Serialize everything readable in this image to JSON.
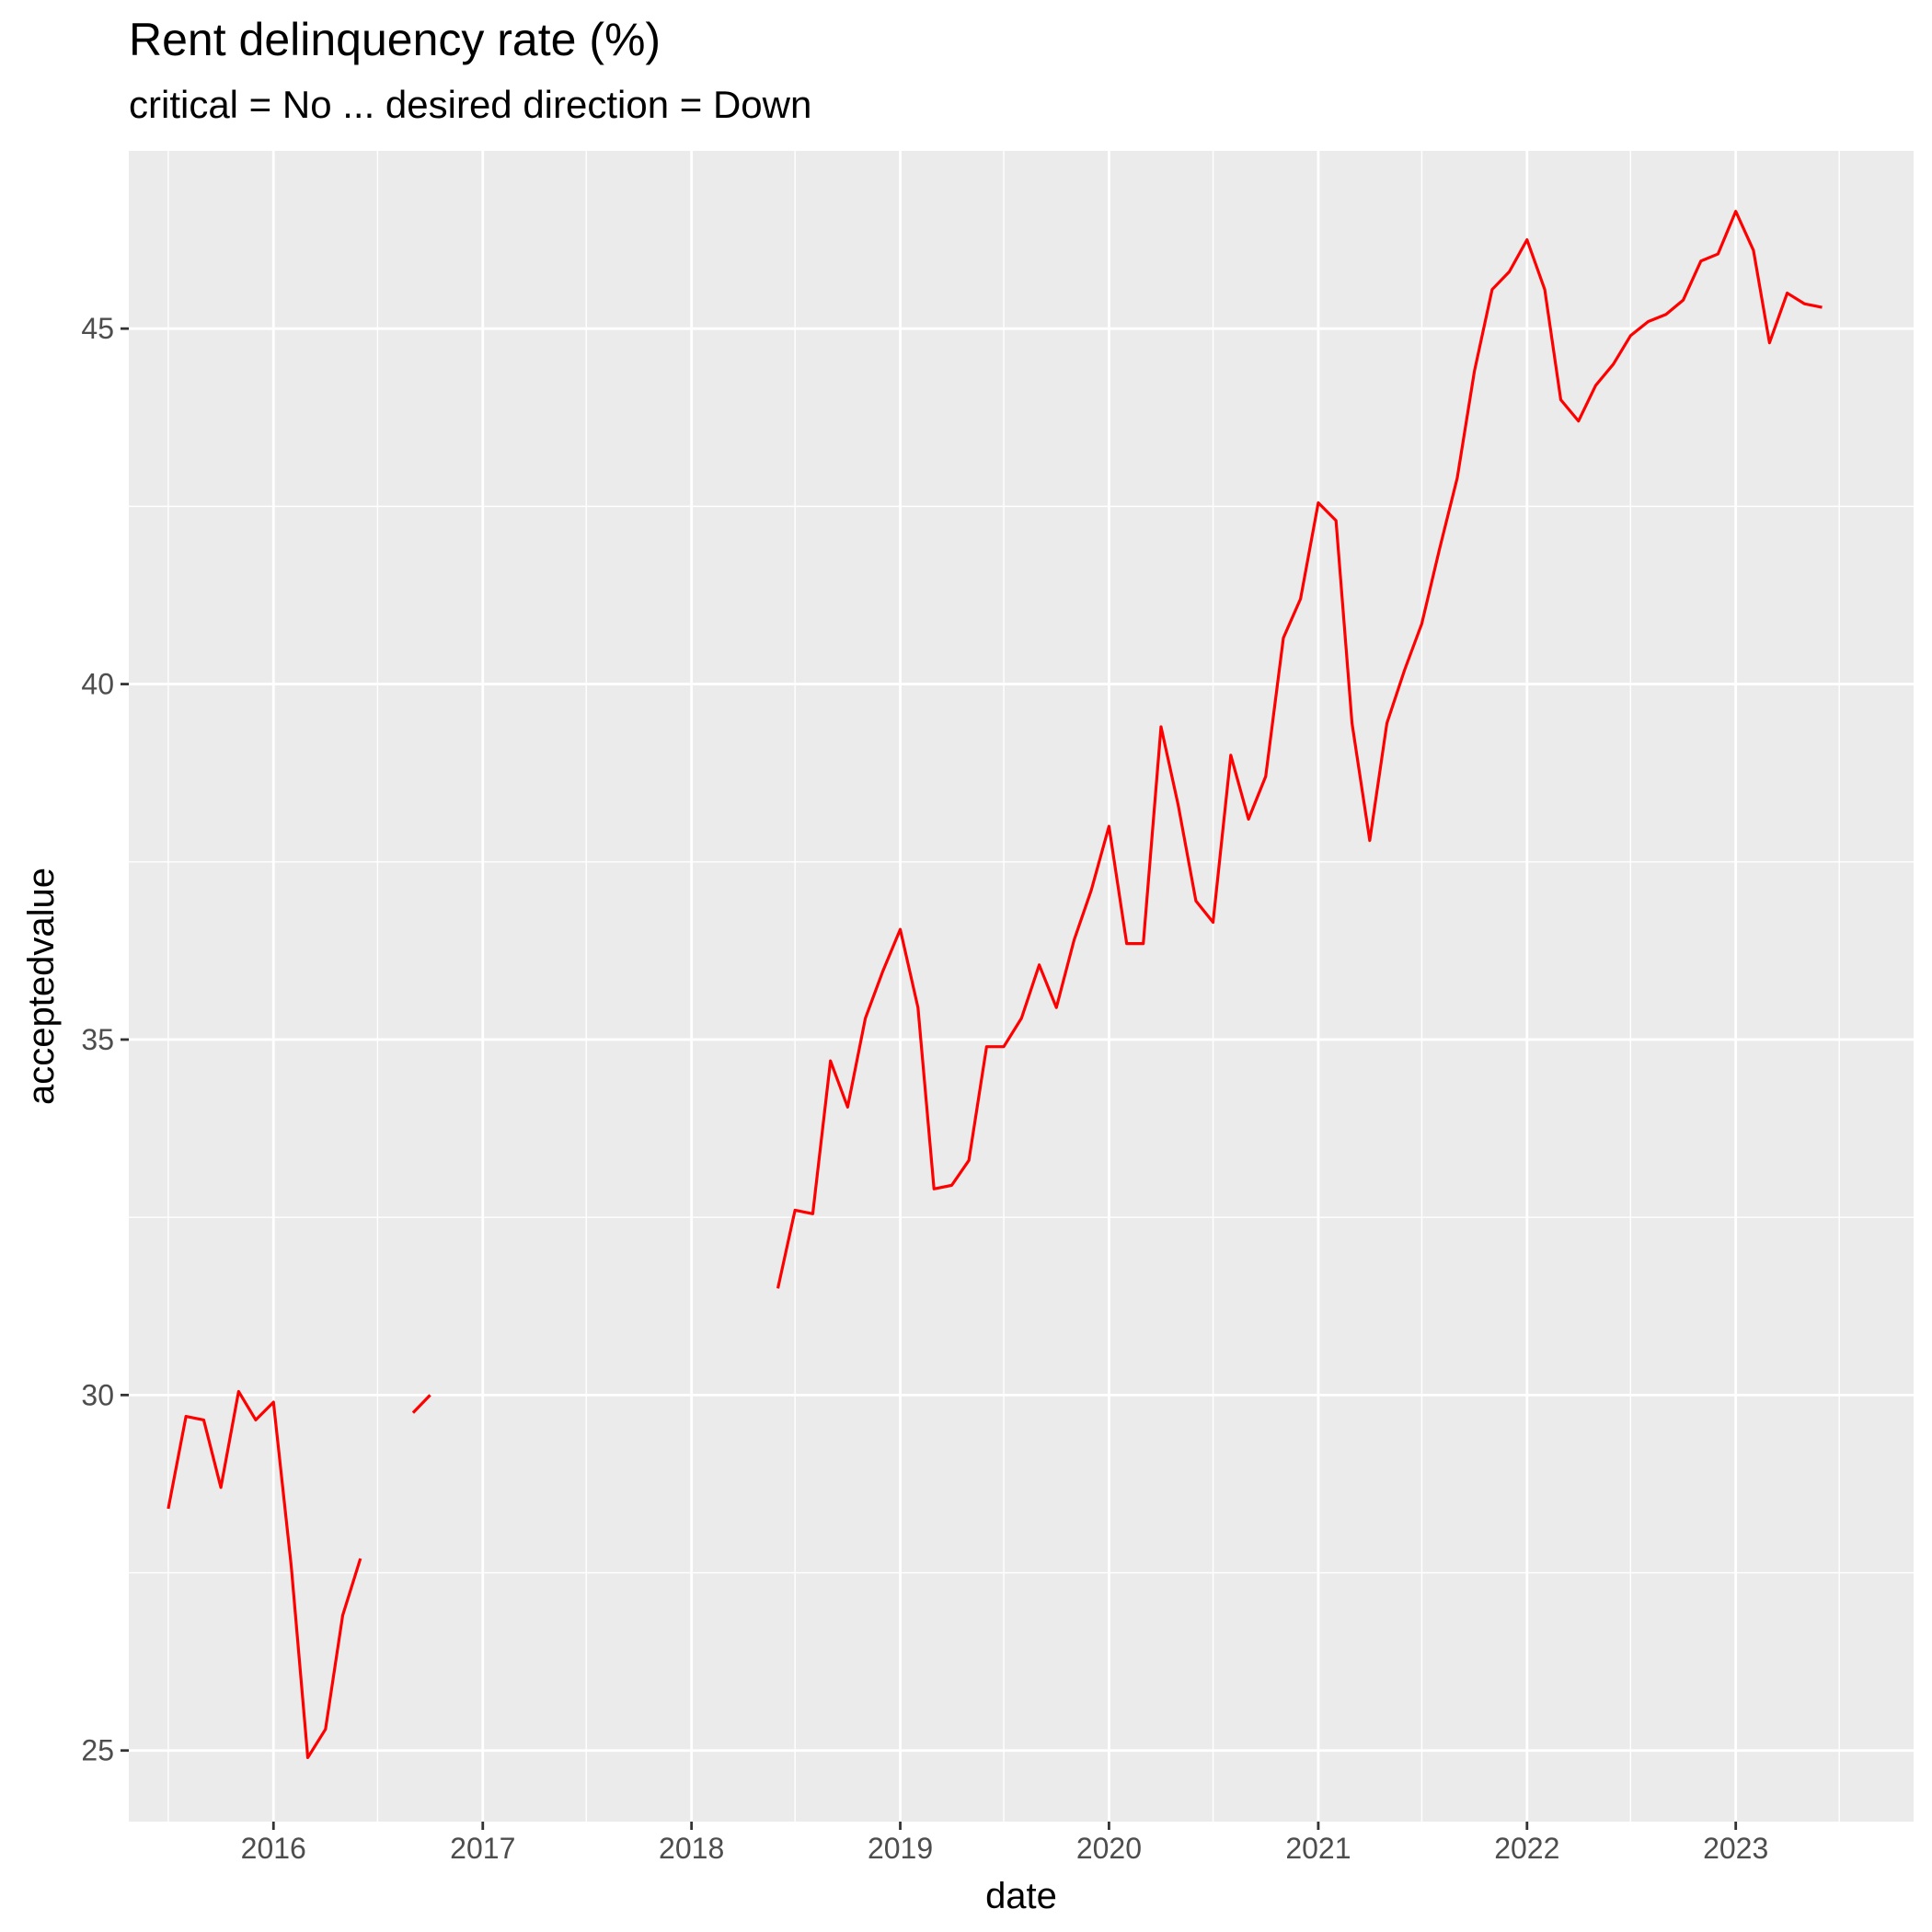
{
  "chart_data": {
    "type": "line",
    "title": "Rent delinquency rate (%)",
    "subtitle": "critical = No ... desired direction = Down",
    "xlabel": "date",
    "ylabel": "acceptedvalue",
    "x_ticks": [
      "2016",
      "2017",
      "2018",
      "2019",
      "2020",
      "2021",
      "2022",
      "2023"
    ],
    "y_ticks": [
      "25",
      "30",
      "35",
      "40",
      "45"
    ],
    "xlim": [
      "2015-04-23",
      "2023-11-08"
    ],
    "ylim": [
      24.0,
      47.5
    ],
    "grid": true,
    "colors": {
      "line": "#ff0000",
      "panel": "#ebebeb",
      "grid": "#ffffff",
      "tick": "#333333"
    },
    "series": [
      {
        "segments": [
          [
            [
              "2015-07-01",
              28.4
            ],
            [
              "2015-08-01",
              29.7
            ],
            [
              "2015-09-01",
              29.65
            ],
            [
              "2015-10-01",
              28.7
            ],
            [
              "2015-11-01",
              30.05
            ],
            [
              "2015-12-01",
              29.65
            ],
            [
              "2016-01-01",
              29.9
            ],
            [
              "2016-02-01",
              27.6
            ],
            [
              "2016-03-01",
              24.9
            ],
            [
              "2016-04-01",
              25.3
            ],
            [
              "2016-05-01",
              26.9
            ],
            [
              "2016-06-01",
              27.7
            ]
          ],
          [
            [
              "2016-09-01",
              29.75
            ],
            [
              "2016-10-01",
              30.0
            ]
          ],
          [
            [
              "2018-06-01",
              31.5
            ],
            [
              "2018-07-01",
              32.6
            ],
            [
              "2018-08-01",
              32.55
            ],
            [
              "2018-09-01",
              34.7
            ],
            [
              "2018-10-01",
              34.05
            ],
            [
              "2018-11-01",
              35.3
            ],
            [
              "2018-12-01",
              35.95
            ],
            [
              "2019-01-01",
              36.55
            ],
            [
              "2019-02-01",
              35.45
            ],
            [
              "2019-03-01",
              32.9
            ],
            [
              "2019-04-01",
              32.95
            ],
            [
              "2019-05-01",
              33.3
            ],
            [
              "2019-06-01",
              34.9
            ],
            [
              "2019-07-01",
              34.9
            ],
            [
              "2019-08-01",
              35.3
            ],
            [
              "2019-09-01",
              36.05
            ],
            [
              "2019-10-01",
              35.45
            ],
            [
              "2019-11-01",
              36.4
            ],
            [
              "2019-12-01",
              37.1
            ],
            [
              "2020-01-01",
              38.0
            ],
            [
              "2020-02-01",
              36.35
            ],
            [
              "2020-03-01",
              36.35
            ],
            [
              "2020-04-01",
              39.4
            ],
            [
              "2020-05-01",
              38.3
            ],
            [
              "2020-06-01",
              36.95
            ],
            [
              "2020-07-01",
              36.65
            ],
            [
              "2020-08-01",
              39.0
            ],
            [
              "2020-09-01",
              38.1
            ],
            [
              "2020-10-01",
              38.7
            ],
            [
              "2020-11-01",
              40.65
            ],
            [
              "2020-12-01",
              41.2
            ],
            [
              "2021-01-01",
              42.55
            ],
            [
              "2021-02-01",
              42.3
            ],
            [
              "2021-03-01",
              39.45
            ],
            [
              "2021-04-01",
              37.8
            ],
            [
              "2021-05-01",
              39.45
            ],
            [
              "2021-06-01",
              40.2
            ],
            [
              "2021-07-01",
              40.85
            ],
            [
              "2021-08-01",
              41.9
            ],
            [
              "2021-09-01",
              42.9
            ],
            [
              "2021-10-01",
              44.4
            ],
            [
              "2021-11-01",
              45.55
            ],
            [
              "2021-12-01",
              45.8
            ],
            [
              "2022-01-01",
              46.25
            ],
            [
              "2022-02-01",
              45.55
            ],
            [
              "2022-03-01",
              44.0
            ],
            [
              "2022-04-01",
              43.7
            ],
            [
              "2022-05-01",
              44.2
            ],
            [
              "2022-06-01",
              44.5
            ],
            [
              "2022-07-01",
              44.9
            ],
            [
              "2022-08-01",
              45.1
            ],
            [
              "2022-09-01",
              45.2
            ],
            [
              "2022-10-01",
              45.4
            ],
            [
              "2022-11-01",
              45.95
            ],
            [
              "2022-12-01",
              46.05
            ],
            [
              "2023-01-01",
              46.65
            ],
            [
              "2023-02-01",
              46.1
            ],
            [
              "2023-03-01",
              44.8
            ],
            [
              "2023-04-01",
              45.5
            ],
            [
              "2023-05-01",
              45.35
            ],
            [
              "2023-06-01",
              45.3
            ]
          ]
        ]
      }
    ]
  }
}
